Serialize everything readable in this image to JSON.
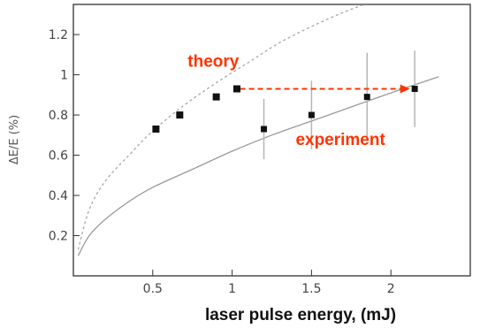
{
  "chart_data": {
    "type": "scatter",
    "xlabel": "laser pulse energy, (mJ)",
    "ylabel": "ΔE/E (%)",
    "xlim": [
      0,
      2.5
    ],
    "ylim": [
      0,
      1.35
    ],
    "x_ticks": [
      0.5,
      1,
      1.5,
      2
    ],
    "x_tick_labels": [
      "0.5",
      "1",
      "1.5",
      "2"
    ],
    "y_ticks": [
      0.2,
      0.4,
      0.6,
      0.8,
      1.0,
      1.2
    ],
    "y_tick_labels": [
      "0.2",
      "0.4",
      "0.6",
      "0.8",
      "1",
      "1.2"
    ],
    "grid": false,
    "series": [
      {
        "kind": "points",
        "marker": "square",
        "color": "#111111",
        "x": [
          0.52,
          0.67,
          0.9,
          1.03
        ],
        "y": [
          0.73,
          0.8,
          0.89,
          0.93
        ]
      },
      {
        "kind": "points-with-error",
        "marker": "circle",
        "color": "#111111",
        "x": [
          1.2,
          1.5,
          1.85,
          2.15
        ],
        "y": [
          0.73,
          0.8,
          0.89,
          0.93
        ],
        "yerr": [
          0.15,
          0.17,
          0.22,
          0.19
        ]
      },
      {
        "kind": "curve",
        "style": "dashed",
        "color": "#a8a8a8",
        "x": [
          0.03,
          0.1,
          0.2,
          0.35,
          0.5,
          0.7,
          0.9,
          1.1,
          1.3,
          1.5,
          1.7,
          1.9
        ],
        "y": [
          0.13,
          0.33,
          0.47,
          0.6,
          0.72,
          0.85,
          0.96,
          1.06,
          1.16,
          1.24,
          1.31,
          1.37
        ]
      },
      {
        "kind": "curve",
        "style": "solid",
        "color": "#9a9a9a",
        "x": [
          0.03,
          0.1,
          0.2,
          0.35,
          0.5,
          0.75,
          1.0,
          1.25,
          1.5,
          1.75,
          2.0,
          2.3
        ],
        "y": [
          0.1,
          0.2,
          0.28,
          0.37,
          0.44,
          0.53,
          0.62,
          0.7,
          0.77,
          0.84,
          0.91,
          0.99
        ]
      }
    ],
    "annotations": [
      {
        "text": "theory",
        "color": "#ff3300",
        "x": 0.72,
        "y": 1.04
      },
      {
        "text": "experiment",
        "color": "#ff3300",
        "x": 1.4,
        "y": 0.65
      }
    ],
    "arrow": {
      "style": "dashed",
      "color": "#ff3300",
      "x_from": 1.05,
      "x_to": 2.12,
      "y": 0.93
    }
  }
}
